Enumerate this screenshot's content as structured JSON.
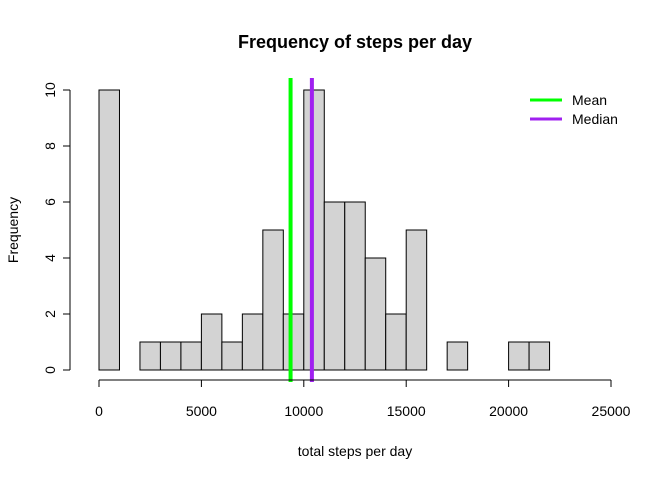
{
  "chart_data": {
    "type": "bar",
    "title": "Frequency of steps per day",
    "xlabel": "total steps per day",
    "ylabel": "Frequency",
    "xlim": [
      0,
      25000
    ],
    "ylim": [
      0,
      10
    ],
    "x_ticks": [
      0,
      5000,
      10000,
      15000,
      20000,
      25000
    ],
    "y_ticks": [
      0,
      2,
      4,
      6,
      8,
      10
    ],
    "grid": false,
    "bin_width": 1000,
    "bins": [
      {
        "start": 0,
        "end": 1000,
        "count": 10
      },
      {
        "start": 1000,
        "end": 2000,
        "count": 0
      },
      {
        "start": 2000,
        "end": 3000,
        "count": 1
      },
      {
        "start": 3000,
        "end": 4000,
        "count": 1
      },
      {
        "start": 4000,
        "end": 5000,
        "count": 1
      },
      {
        "start": 5000,
        "end": 6000,
        "count": 2
      },
      {
        "start": 6000,
        "end": 7000,
        "count": 1
      },
      {
        "start": 7000,
        "end": 8000,
        "count": 2
      },
      {
        "start": 8000,
        "end": 9000,
        "count": 5
      },
      {
        "start": 9000,
        "end": 10000,
        "count": 2
      },
      {
        "start": 10000,
        "end": 11000,
        "count": 10
      },
      {
        "start": 11000,
        "end": 12000,
        "count": 6
      },
      {
        "start": 12000,
        "end": 13000,
        "count": 6
      },
      {
        "start": 13000,
        "end": 14000,
        "count": 4
      },
      {
        "start": 14000,
        "end": 15000,
        "count": 2
      },
      {
        "start": 15000,
        "end": 16000,
        "count": 5
      },
      {
        "start": 16000,
        "end": 17000,
        "count": 0
      },
      {
        "start": 17000,
        "end": 18000,
        "count": 1
      },
      {
        "start": 18000,
        "end": 19000,
        "count": 0
      },
      {
        "start": 19000,
        "end": 20000,
        "count": 0
      },
      {
        "start": 20000,
        "end": 21000,
        "count": 1
      },
      {
        "start": 21000,
        "end": 22000,
        "count": 1
      }
    ],
    "bar_fill": "#d3d3d3",
    "bar_stroke": "#000000",
    "vlines": [
      {
        "name": "Mean",
        "x": 9354,
        "color": "#00ff00"
      },
      {
        "name": "Median",
        "x": 10395,
        "color": "#a020f0"
      }
    ],
    "legend_position": "top-right"
  }
}
